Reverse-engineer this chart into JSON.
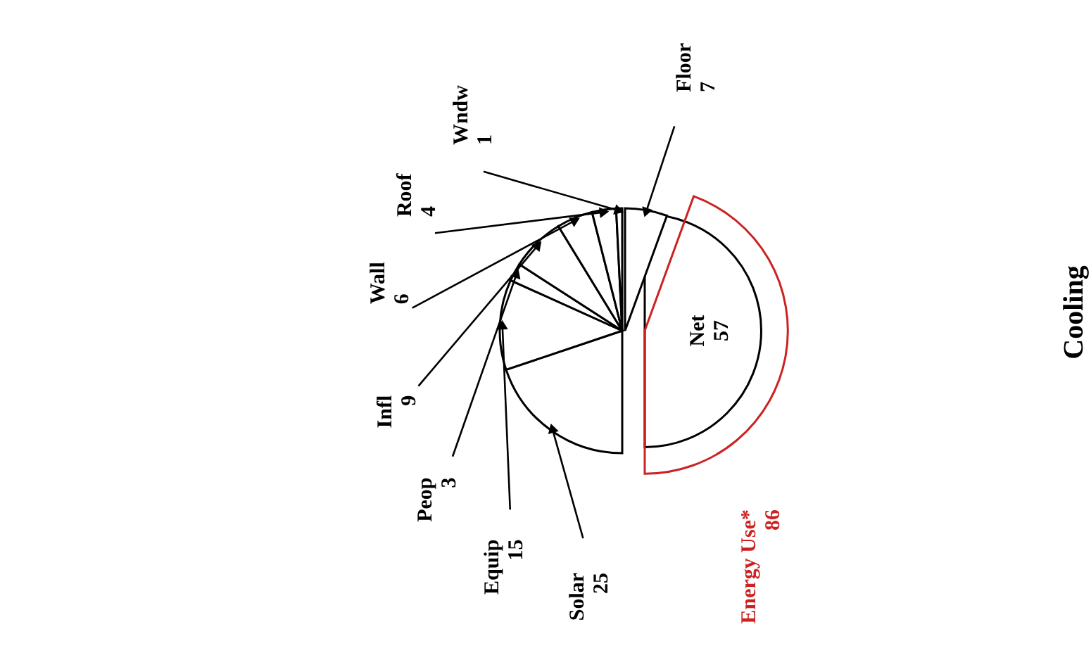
{
  "chart_data": {
    "type": "other",
    "title": "Cooling",
    "categories": [
      "Solar",
      "Equip",
      "Peop",
      "Infl",
      "Wall",
      "Roof",
      "Wndw",
      "Floor",
      "Net",
      "Energy Use*"
    ],
    "values": [
      25,
      15,
      3,
      9,
      6,
      4,
      1,
      7,
      57,
      86
    ],
    "colors": [
      "#000000",
      "#000000",
      "#000000",
      "#000000",
      "#000000",
      "#000000",
      "#000000",
      "#000000",
      "#000000",
      "#cc2222"
    ],
    "data_labels": true
  }
}
